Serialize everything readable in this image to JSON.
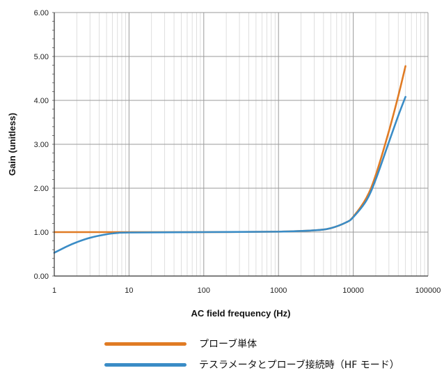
{
  "chart_data": {
    "type": "line",
    "xscale": "log",
    "xlim": [
      1,
      100000
    ],
    "ylim": [
      0,
      6
    ],
    "xlabel": "AC field frequency (Hz)",
    "ylabel": "Gain (unitless)",
    "grid": true,
    "legend_position": "bottom",
    "x_ticks": [
      "1",
      "10",
      "100",
      "1000",
      "10000",
      "100000"
    ],
    "y_ticks": [
      "0.00",
      "1.00",
      "2.00",
      "3.00",
      "4.00",
      "5.00",
      "6.00"
    ],
    "series": [
      {
        "name": "プローブ単体",
        "color": "#e07b24",
        "x": [
          1,
          10,
          100,
          1000,
          3000,
          5000,
          8000,
          10000,
          15000,
          20000,
          30000,
          40000,
          50000
        ],
        "y": [
          1.0,
          1.0,
          1.0,
          1.01,
          1.04,
          1.09,
          1.22,
          1.35,
          1.78,
          2.3,
          3.3,
          4.1,
          4.78
        ]
      },
      {
        "name": "テスラメータとプローブ接続時（HF モード）",
        "color": "#3a8cc6",
        "x": [
          1,
          1.5,
          2,
          3,
          5,
          7,
          10,
          100,
          1000,
          3000,
          5000,
          8000,
          10000,
          15000,
          20000,
          30000,
          40000,
          50000
        ],
        "y": [
          0.53,
          0.68,
          0.77,
          0.87,
          0.95,
          0.98,
          0.99,
          1.0,
          1.01,
          1.04,
          1.09,
          1.22,
          1.34,
          1.72,
          2.2,
          3.05,
          3.65,
          4.08
        ]
      }
    ]
  }
}
